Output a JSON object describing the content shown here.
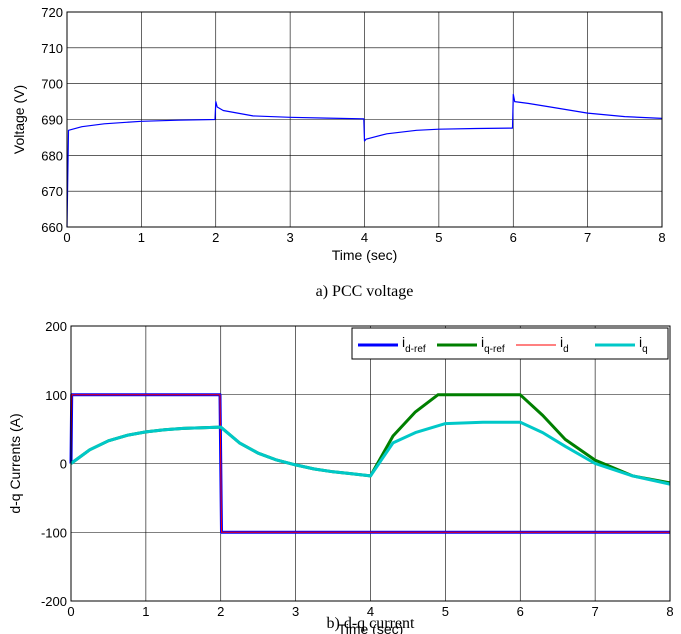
{
  "chart_data": [
    {
      "type": "line",
      "caption": "a) PCC voltage",
      "xlabel": "Time (sec)",
      "ylabel": "Voltage (V)",
      "xlim": [
        0,
        8
      ],
      "ylim": [
        660,
        720
      ],
      "xticks": [
        "0",
        "1",
        "2",
        "3",
        "4",
        "5",
        "6",
        "7",
        "8"
      ],
      "yticks": [
        "660",
        "670",
        "680",
        "690",
        "700",
        "710",
        "720"
      ],
      "grid": true,
      "series": [
        {
          "color": "#0000ff",
          "x": [
            0,
            0.02,
            0.2,
            0.5,
            1.0,
            1.5,
            1.99,
            2.0,
            2.02,
            2.1,
            2.5,
            3.0,
            3.5,
            3.99,
            4.0,
            4.02,
            4.3,
            4.7,
            5.0,
            5.5,
            5.99,
            6.0,
            6.02,
            6.2,
            6.5,
            7.0,
            7.5,
            8.0
          ],
          "y": [
            660,
            687,
            688,
            688.8,
            689.5,
            689.8,
            690,
            695,
            693.5,
            692.5,
            691,
            690.6,
            690.4,
            690.2,
            684,
            684.5,
            686,
            687,
            687.3,
            687.5,
            687.6,
            697,
            695,
            694.5,
            693.5,
            691.8,
            690.8,
            690.3
          ]
        }
      ]
    },
    {
      "type": "line",
      "caption": "b) d-q current",
      "xlabel": "Time (sec)",
      "ylabel": "d-q Currents (A)",
      "xlim": [
        0,
        8
      ],
      "ylim": [
        -200,
        200
      ],
      "xticks": [
        "0",
        "1",
        "2",
        "3",
        "4",
        "5",
        "6",
        "7",
        "8"
      ],
      "yticks": [
        "-200",
        "-100",
        "0",
        "100",
        "200"
      ],
      "grid": true,
      "legend": "top-right",
      "series": [
        {
          "name": "i_d-ref",
          "label_main": "i",
          "label_sub": "d-ref",
          "color": "#0000ff",
          "width": 3,
          "x": [
            0,
            0.01,
            1.99,
            2.01,
            8.0
          ],
          "y": [
            0,
            100,
            100,
            -100,
            -100
          ]
        },
        {
          "name": "i_q-ref",
          "label_main": "i",
          "label_sub": "q-ref",
          "color": "#007f00",
          "width": 3,
          "x": [
            0,
            0.25,
            0.5,
            0.75,
            1.0,
            1.25,
            1.5,
            1.75,
            2.0,
            2.25,
            2.5,
            2.75,
            3.0,
            3.25,
            3.5,
            3.75,
            4.0,
            4.3,
            4.6,
            4.9,
            5.5,
            6.0,
            6.3,
            6.6,
            7.0,
            7.5,
            8.0
          ],
          "y": [
            0,
            20,
            33,
            41,
            46,
            49,
            51,
            52,
            53,
            30,
            15,
            5,
            -2,
            -8,
            -12,
            -15,
            -18,
            40,
            75,
            100,
            100,
            100,
            70,
            35,
            5,
            -18,
            -28
          ]
        },
        {
          "name": "i_d",
          "label_main": "i",
          "label_sub": "d",
          "color": "#ff0000",
          "width": 1,
          "x": [
            0,
            0.01,
            1.99,
            2.01,
            8.0
          ],
          "y": [
            0,
            100,
            100,
            -100,
            -100
          ]
        },
        {
          "name": "i_q",
          "label_main": "i",
          "label_sub": "q",
          "color": "#00c8c8",
          "width": 3,
          "x": [
            0,
            0.25,
            0.5,
            0.75,
            1.0,
            1.25,
            1.5,
            1.75,
            2.0,
            2.25,
            2.5,
            2.75,
            3.0,
            3.25,
            3.5,
            3.75,
            4.0,
            4.3,
            4.6,
            5.0,
            5.5,
            6.0,
            6.3,
            6.6,
            7.0,
            7.5,
            8.0
          ],
          "y": [
            0,
            20,
            33,
            41,
            46,
            49,
            51,
            52,
            53,
            30,
            15,
            5,
            -2,
            -8,
            -12,
            -15,
            -18,
            30,
            45,
            58,
            60,
            60,
            45,
            25,
            0,
            -18,
            -30
          ]
        }
      ]
    }
  ]
}
